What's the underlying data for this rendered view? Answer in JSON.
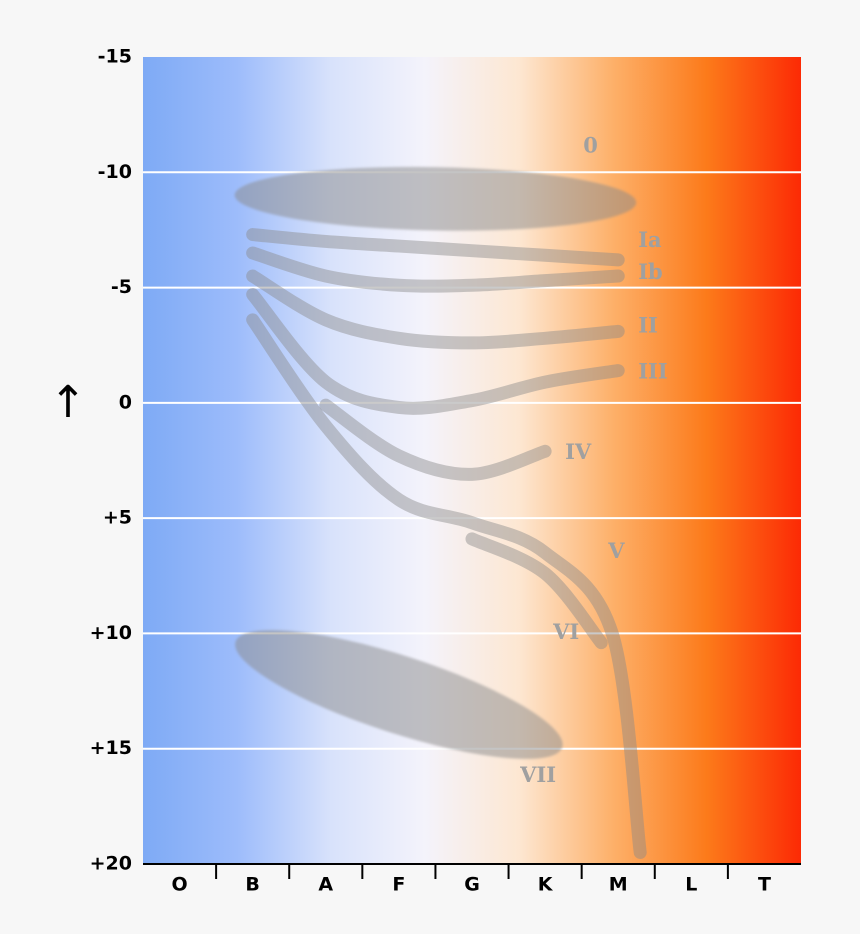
{
  "chart_data": {
    "type": "diagram",
    "y_axis": {
      "ticks": [
        "-15",
        "-10",
        "-5",
        "0",
        "+5",
        "+10",
        "+15",
        "+20"
      ],
      "tick_values": [
        -15,
        -10,
        -5,
        0,
        5,
        10,
        15,
        20
      ],
      "range": [
        -15,
        20
      ],
      "label": "↑"
    },
    "x_axis": {
      "categories": [
        "O",
        "B",
        "A",
        "F",
        "G",
        "K",
        "M",
        "L",
        "T"
      ]
    },
    "grid": true,
    "background_gradient": [
      "#7eaaf5",
      "#9dbcfb",
      "#d8e2fb",
      "#f4f3fb",
      "#fde7d2",
      "#fdb069",
      "#fc7a1a",
      "#fc2a05"
    ],
    "gridline_color": "#ffffff",
    "band_color": "#8a8a8a",
    "label_color": "#a0a0a0",
    "luminosity_classes": [
      {
        "name": "0",
        "shape": "ellipse",
        "label_at": [
          "M",
          -11.1
        ],
        "points": [
          [
            "B",
            -9.0
          ],
          [
            "M",
            -8.7
          ]
        ],
        "thickness": 2.5
      },
      {
        "name": "Ia",
        "shape": "band",
        "label_at": [
          "M",
          -7.0
        ],
        "points": [
          [
            "B",
            -7.3
          ],
          [
            "A",
            -7.0
          ],
          [
            "F",
            -6.8
          ],
          [
            "G",
            -6.6
          ],
          [
            "K",
            -6.4
          ],
          [
            "M",
            -6.2
          ]
        ]
      },
      {
        "name": "Ib",
        "shape": "band",
        "label_at": [
          "M",
          -5.6
        ],
        "points": [
          [
            "B",
            -6.5
          ],
          [
            "A",
            -5.5
          ],
          [
            "F",
            -5.1
          ],
          [
            "G",
            -5.1
          ],
          [
            "K",
            -5.3
          ],
          [
            "M",
            -5.5
          ]
        ]
      },
      {
        "name": "II",
        "shape": "band",
        "label_at": [
          "M",
          -3.3
        ],
        "points": [
          [
            "B",
            -5.5
          ],
          [
            "A",
            -3.6
          ],
          [
            "F",
            -2.8
          ],
          [
            "G",
            -2.6
          ],
          [
            "K",
            -2.8
          ],
          [
            "M",
            -3.1
          ]
        ]
      },
      {
        "name": "III",
        "shape": "band",
        "label_at": [
          "M",
          -1.3
        ],
        "points": [
          [
            "B",
            -4.7
          ],
          [
            "A",
            -0.9
          ],
          [
            "F",
            0.2
          ],
          [
            "G",
            -0.1
          ],
          [
            "K",
            -0.9
          ],
          [
            "M",
            -1.4
          ]
        ]
      },
      {
        "name": "IV",
        "shape": "band",
        "label_at": [
          "K",
          2.2
        ],
        "points": [
          [
            "A",
            0.1
          ],
          [
            "F",
            2.3
          ],
          [
            "G",
            3.1
          ],
          [
            "K",
            2.1
          ]
        ]
      },
      {
        "name": "V",
        "shape": "band",
        "label_at": [
          "M",
          6.5
        ],
        "points": [
          [
            "B",
            -3.6
          ],
          [
            "A",
            1.0
          ],
          [
            "F",
            4.2
          ],
          [
            "G",
            5.2
          ],
          [
            "K",
            6.5
          ],
          [
            "M",
            10.0
          ],
          [
            "M",
            19.5
          ]
        ]
      },
      {
        "name": "VI",
        "shape": "band",
        "label_at": [
          "K",
          10.0
        ],
        "points": [
          [
            "G",
            5.9
          ],
          [
            "K",
            7.4
          ],
          [
            "M",
            10.4
          ]
        ]
      },
      {
        "name": "VII",
        "shape": "ellipse",
        "label_at": [
          "K",
          16.2
        ],
        "points": [
          [
            "B",
            10.6
          ],
          [
            "K",
            14.7
          ]
        ],
        "thickness": 3.2
      }
    ]
  }
}
